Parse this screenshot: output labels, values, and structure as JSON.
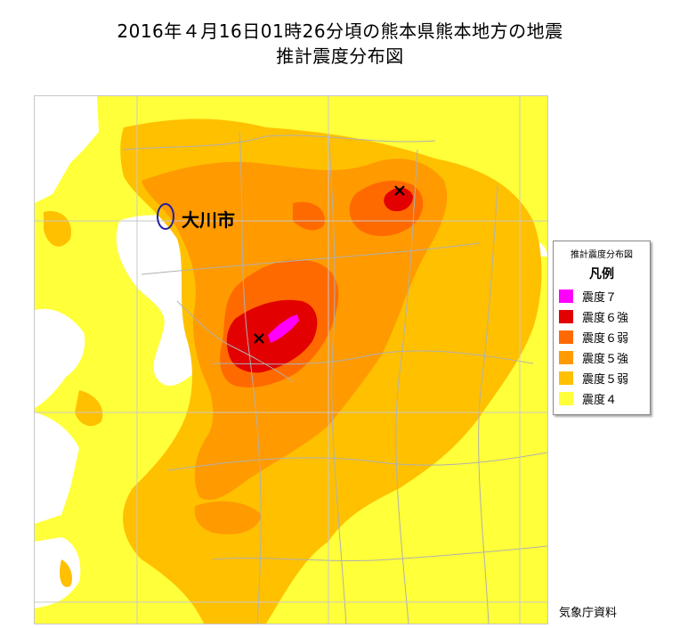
{
  "title": {
    "line1": "2016年４月16日01時26分頃の熊本県熊本地方の地震",
    "line2": "推計震度分布図"
  },
  "callout": {
    "label": "大川市"
  },
  "legend": {
    "title": "推計震度分布図",
    "heading": "凡例",
    "items": [
      {
        "label": "震度７",
        "color": "#ff00ff"
      },
      {
        "label": "震度６強",
        "color": "#e20000"
      },
      {
        "label": "震度６弱",
        "color": "#ff6a00"
      },
      {
        "label": "震度５強",
        "color": "#ff9a00"
      },
      {
        "label": "震度５弱",
        "color": "#ffc000"
      },
      {
        "label": "震度４",
        "color": "#ffff3a"
      }
    ]
  },
  "markers": [
    "epicenter-cross",
    "epicenter-cross"
  ],
  "credit": "気象庁資料"
}
